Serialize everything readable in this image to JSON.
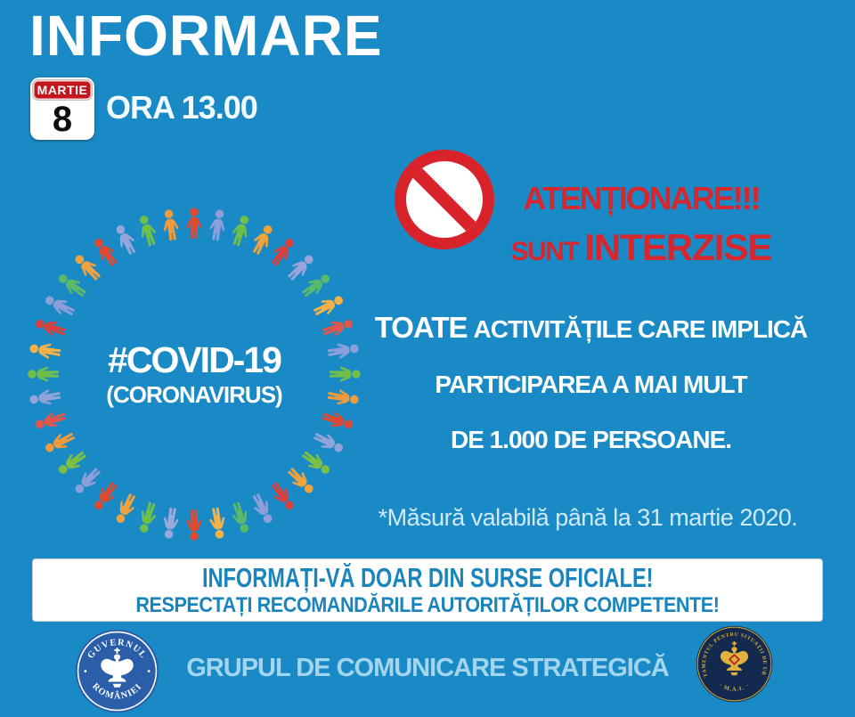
{
  "header": {
    "title": "INFORMARE",
    "calendar": {
      "month": "MARTIE",
      "day": "8"
    },
    "time": "ORA 13.00"
  },
  "warning": {
    "line1": "ATENȚIONARE!!!",
    "line2_prefix": "SUNT",
    "line2_emphasis": "INTERZISE"
  },
  "ring": {
    "center_line1": "#COVID-19",
    "center_line2": "(CORONAVIRUS)",
    "figure_colors": [
      "#e04a31",
      "#8c9fd8",
      "#6fbf4a",
      "#f0a33c",
      "#d6423d",
      "#97a6da",
      "#5bb96b",
      "#f3b14a",
      "#e2574c",
      "#8c9fd8",
      "#6fbf4a",
      "#ef9a3c",
      "#dc4a31",
      "#93a4da",
      "#7cc043",
      "#f0a33c",
      "#d6423d",
      "#8c9fd8",
      "#5bb96b",
      "#f3b14a",
      "#e04a31",
      "#9aa8dc",
      "#6fbf4a",
      "#f0a33c",
      "#dc4a31",
      "#8c9fd8",
      "#7cc043",
      "#ef9a3c",
      "#e2574c",
      "#93a4da",
      "#6fbf4a",
      "#f3b14a",
      "#d6423d",
      "#8c9fd8",
      "#5bb96b",
      "#f0a33c",
      "#e04a31",
      "#97a6da",
      "#6fbf4a",
      "#ef9a3c"
    ]
  },
  "message": {
    "line1_lead": "TOATE",
    "line1_rest": "ACTIVITĂȚILE CARE IMPLICĂ",
    "line2": "PARTICIPAREA A MAI MULT",
    "line3": "DE 1.000 DE PERSOANE.",
    "footnote": "*Măsură valabilă până la 31 martie 2020."
  },
  "notice_box": {
    "line1": "INFORMAȚI-VĂ DOAR DIN SURSE OFICIALE!",
    "line2": "RESPECTAȚI RECOMANDĂRILE AUTORITĂȚILOR COMPETENTE!"
  },
  "footer": {
    "label": "GRUPUL DE COMUNICARE STRATEGICĂ",
    "gov_logo": {
      "top_text": "GUVERNUL",
      "bottom_text": "ROMÂNIEI"
    },
    "dsu_logo": {
      "ring_text": "DEPARTAMENTUL PENTRU SITUAȚII DE URGENȚĂ",
      "bottom_text": "· M.A.I. ·"
    }
  },
  "colors": {
    "background": "#1a8ac6",
    "title_white": "#ffffff",
    "warning_red": "#d6272e",
    "prohibition_red": "#d8232a",
    "calendar_red": "#c4161e",
    "notice_text_blue": "#1a85bd",
    "footnote_pale": "#cfeaf8",
    "footer_label_blue": "#a3d5ef",
    "gov_logo_blue": "#2a5ea8",
    "dsu_navy": "#13294e",
    "dsu_gold": "#e0b23e"
  }
}
